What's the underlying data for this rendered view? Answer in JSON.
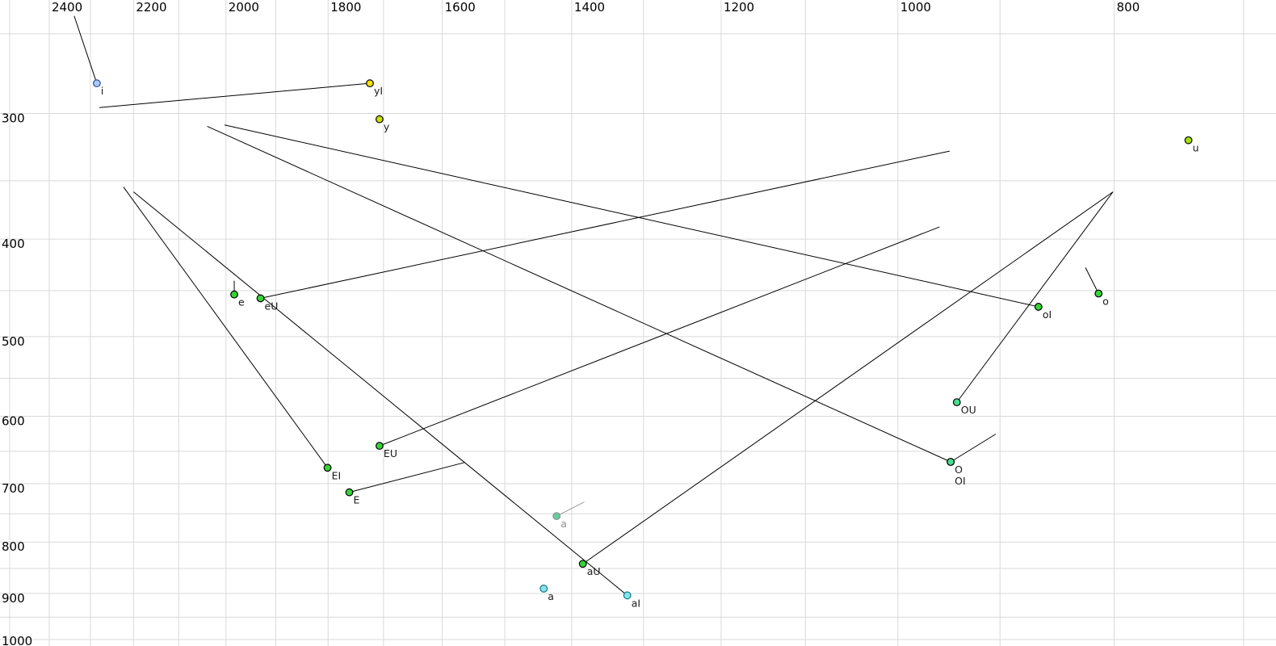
{
  "chart_data": {
    "type": "scatter",
    "title": "",
    "xlabel": "",
    "ylabel": "",
    "x_axis": {
      "scale": "log",
      "reversed": true,
      "range": [
        2525,
        677
      ],
      "grid_values": [
        2500,
        2400,
        2300,
        2200,
        2100,
        2000,
        1900,
        1800,
        1700,
        1600,
        1500,
        1400,
        1300,
        1200,
        1100,
        1000,
        900,
        800,
        700
      ],
      "tick_labels": [
        "2400",
        "2200",
        "2000",
        "1800",
        "1600",
        "1400",
        "1200",
        "1000",
        "800"
      ],
      "tick_values": [
        2400,
        2200,
        2000,
        1800,
        1600,
        1400,
        1200,
        1000,
        800
      ]
    },
    "y_axis": {
      "scale": "log",
      "range": [
        231.4,
        1015
      ],
      "grid_values": [
        250,
        300,
        350,
        400,
        450,
        500,
        550,
        600,
        650,
        700,
        750,
        800,
        850,
        900,
        950,
        1000
      ],
      "tick_labels": [
        "300",
        "400",
        "500",
        "600",
        "700",
        "800",
        "900",
        "1000"
      ],
      "tick_values": [
        300,
        400,
        500,
        600,
        700,
        800,
        900,
        1000
      ]
    },
    "grid": true,
    "legend": "none",
    "points": [
      {
        "label": "i",
        "f2": 2285,
        "f1": 280,
        "glide_f2": 2339,
        "glide_f1": 240,
        "fill": "#a9c9f2",
        "stroke": "#2d4f9e"
      },
      {
        "label": "yI",
        "f2": 1724,
        "f1": 280,
        "glide_f2": 2279,
        "glide_f1": 296,
        "fill": "#ffe000",
        "stroke": "#000000"
      },
      {
        "label": "y",
        "f2": 1707,
        "f1": 304,
        "glide_f2": null,
        "glide_f1": null,
        "fill": "#cfe000",
        "stroke": "#000000"
      },
      {
        "label": "u",
        "f2": 741,
        "f1": 319,
        "glide_f2": null,
        "glide_f1": null,
        "fill": "#a4e000",
        "stroke": "#000000"
      },
      {
        "label": "e",
        "f2": 1983,
        "f1": 454,
        "glide_f2": 1983,
        "glide_f1": 440,
        "fill": "#35d435",
        "stroke": "#000000"
      },
      {
        "label": "eU",
        "f2": 1930,
        "f1": 458,
        "glide_f2": 948,
        "glide_f1": 327,
        "fill": "#35d435",
        "stroke": "#000000"
      },
      {
        "label": "o",
        "f2": 813,
        "f1": 453,
        "glide_f2": 824,
        "glide_f1": 427,
        "fill": "#35d435",
        "stroke": "#000000"
      },
      {
        "label": "oI",
        "f2": 865,
        "f1": 467,
        "glide_f2": 2003,
        "glide_f1": 308,
        "fill": "#35d435",
        "stroke": "#000000"
      },
      {
        "label": "OU",
        "f2": 941,
        "f1": 581,
        "glide_f2": 801,
        "glide_f1": 359,
        "fill": "#46e08e",
        "stroke": "#000000"
      },
      {
        "label": "O",
        "f2": 947,
        "f1": 666,
        "glide_f2": 904,
        "glide_f1": 625,
        "fill": "#46e08e",
        "stroke": "#000000"
      },
      {
        "label": "OI",
        "f2": 947,
        "f1": 666,
        "glide_f2": 2039,
        "glide_f1": 309,
        "fill": "#46e08e",
        "stroke": "#000000"
      },
      {
        "label": "EU",
        "f2": 1707,
        "f1": 642,
        "glide_f2": 958,
        "glide_f1": 389,
        "fill": "#35d435",
        "stroke": "#000000"
      },
      {
        "label": "EI",
        "f2": 1801,
        "f1": 675,
        "glide_f2": 2223,
        "glide_f1": 355,
        "fill": "#35d435",
        "stroke": "#000000"
      },
      {
        "label": "E",
        "f2": 1761,
        "f1": 714,
        "glide_f2": 1564,
        "glide_f1": 667,
        "fill": "#35d435",
        "stroke": "#000000"
      },
      {
        "label": "a",
        "f2": 1422,
        "f1": 754,
        "glide_f2": 1382,
        "glide_f1": 730,
        "fill": "#62cfa0",
        "stroke": "#8f8f8f",
        "muted": true
      },
      {
        "label": "aU",
        "f2": 1384,
        "f1": 841,
        "glide_f2": 801,
        "glide_f1": 359,
        "fill": "#35d435",
        "stroke": "#000000"
      },
      {
        "label": "a",
        "f2": 1441,
        "f1": 890,
        "glide_f2": null,
        "glide_f1": null,
        "fill": "#8ce3ea",
        "stroke": "#0b7a8a"
      },
      {
        "label": "aI",
        "f2": 1322,
        "f1": 904,
        "glide_f2": 2200,
        "glide_f1": 359,
        "fill": "#8ce3ea",
        "stroke": "#0b7a8a"
      }
    ]
  },
  "colors": {
    "background": "#ffffff",
    "grid": "#d9d9d9",
    "axis_text": "#000000",
    "trajectory_line": "#000000",
    "muted_line": "#999999",
    "label_text": "#1a1a1a",
    "muted_text": "#8f8f8f"
  }
}
